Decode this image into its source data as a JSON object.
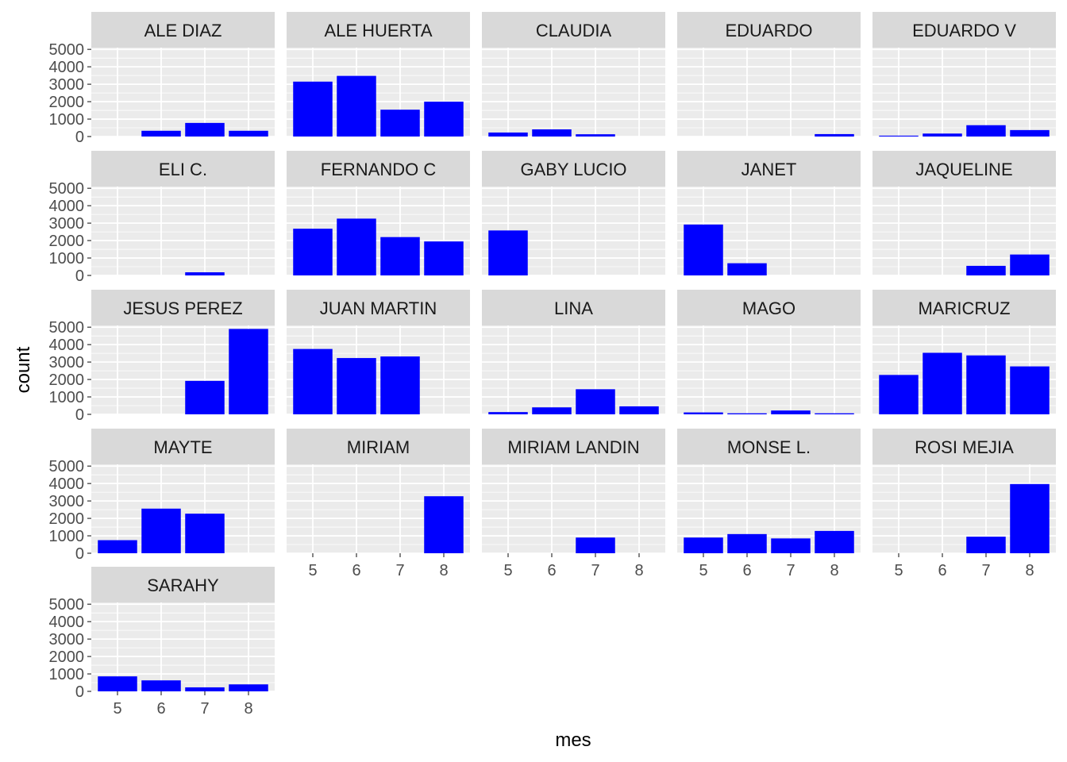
{
  "chart_data": {
    "type": "bar",
    "layout": "facet-wrap",
    "facet_columns": 5,
    "xlabel": "mes",
    "ylabel": "count",
    "x_categories": [
      "5",
      "6",
      "7",
      "8"
    ],
    "y_ticks": [
      0,
      1000,
      2000,
      3000,
      4000,
      5000
    ],
    "ylim": [
      0,
      5100
    ],
    "grid": true,
    "colors": {
      "bar": "#0000FF",
      "panel_background": "#EBEBEB",
      "grid_major": "#FFFFFF",
      "strip_background": "#D9D9D9",
      "strip_text": "#1A1A1A",
      "tick_text": "#4D4D4D"
    },
    "facets": [
      {
        "name": "ALE DIAZ",
        "values": [
          0,
          330,
          780,
          330
        ]
      },
      {
        "name": "ALE HUERTA",
        "values": [
          3150,
          3480,
          1540,
          2000
        ]
      },
      {
        "name": "CLAUDIA",
        "values": [
          230,
          410,
          130,
          0
        ]
      },
      {
        "name": "EDUARDO",
        "values": [
          0,
          0,
          0,
          140
        ]
      },
      {
        "name": "EDUARDO V",
        "values": [
          50,
          170,
          650,
          370
        ]
      },
      {
        "name": "ELI C.",
        "values": [
          0,
          0,
          180,
          0
        ]
      },
      {
        "name": "FERNANDO C",
        "values": [
          2680,
          3260,
          2200,
          1950
        ]
      },
      {
        "name": "GABY LUCIO",
        "values": [
          2580,
          0,
          0,
          0
        ]
      },
      {
        "name": "JANET",
        "values": [
          2920,
          700,
          0,
          0
        ]
      },
      {
        "name": "JAQUELINE",
        "values": [
          0,
          0,
          550,
          1200
        ]
      },
      {
        "name": "JESUS PEREZ",
        "values": [
          0,
          0,
          1920,
          4900
        ]
      },
      {
        "name": "JUAN MARTIN",
        "values": [
          3750,
          3230,
          3320,
          0
        ]
      },
      {
        "name": "LINA",
        "values": [
          130,
          400,
          1440,
          460
        ]
      },
      {
        "name": "MAGO",
        "values": [
          110,
          60,
          220,
          60
        ]
      },
      {
        "name": "MARICRUZ",
        "values": [
          2260,
          3530,
          3380,
          2750
        ]
      },
      {
        "name": "MAYTE",
        "values": [
          750,
          2560,
          2270,
          0
        ]
      },
      {
        "name": "MIRIAM",
        "values": [
          0,
          0,
          0,
          3270
        ]
      },
      {
        "name": "MIRIAM LANDIN",
        "values": [
          0,
          0,
          900,
          0
        ]
      },
      {
        "name": "MONSE L.",
        "values": [
          900,
          1100,
          850,
          1280
        ]
      },
      {
        "name": "ROSI MEJIA",
        "values": [
          0,
          0,
          950,
          3970
        ]
      },
      {
        "name": "SARAHY",
        "values": [
          860,
          630,
          230,
          400
        ]
      }
    ]
  }
}
